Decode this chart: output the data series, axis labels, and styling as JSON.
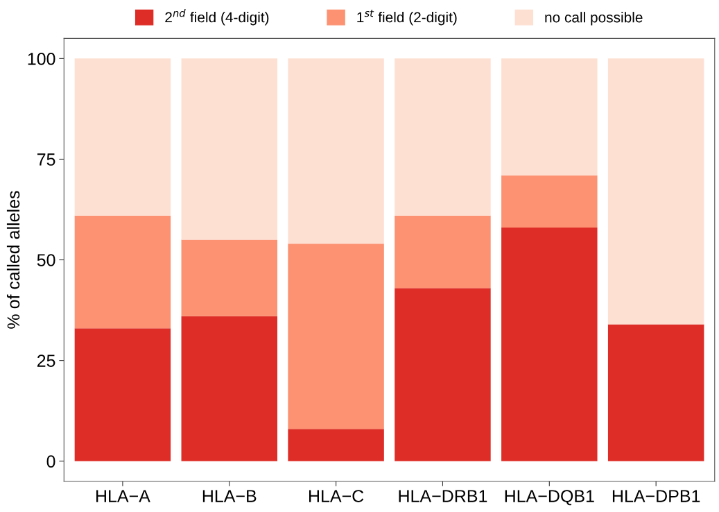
{
  "chart_data": {
    "type": "bar",
    "stacked": true,
    "ylabel": "% of called alleles",
    "categories": [
      "HLA−A",
      "HLA−B",
      "HLA−C",
      "HLA−DRB1",
      "HLA−DQB1",
      "HLA−DPB1"
    ],
    "series": [
      {
        "name": "2$^{nd}$ field (4-digit)",
        "color": "#de2d26",
        "values": [
          33,
          36,
          8,
          43,
          58,
          34
        ]
      },
      {
        "name": "1$^{st}$ field (2-digit)",
        "color": "#fc9272",
        "values": [
          28,
          19,
          46,
          18,
          13,
          0
        ]
      },
      {
        "name": "no call possible",
        "color": "#fee0d2",
        "values": [
          39,
          45,
          46,
          39,
          29,
          66
        ]
      }
    ],
    "ylim": [
      -5,
      105
    ],
    "yticks": [
      0,
      25,
      50,
      75,
      100
    ],
    "grid": false,
    "legend": "top"
  }
}
